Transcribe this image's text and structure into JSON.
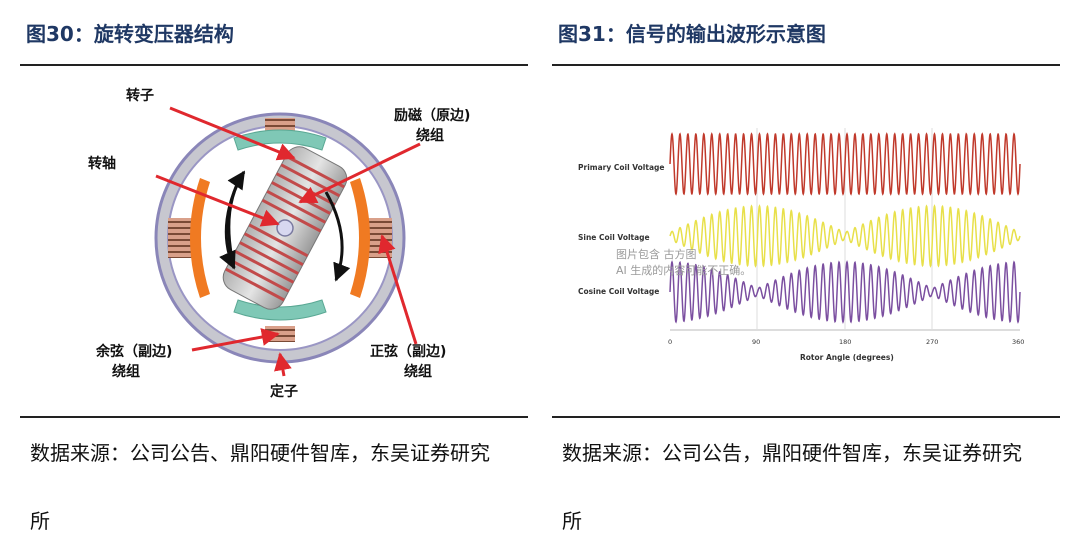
{
  "left": {
    "title": "图30：旋转变压器结构",
    "labels": {
      "rotor": "转子",
      "shaft": "转轴",
      "excitation_l1": "励磁（原边)",
      "excitation_l2": "绕组",
      "cosine_l1": "余弦（副边)",
      "cosine_l2": "绕组",
      "sine_l1": "正弦（副边)",
      "sine_l2": "绕组",
      "stator": "定子"
    },
    "source_l1": "数据来源：公司公告、鼎阳硬件智库，东吴证券研究",
    "source_l2": "所"
  },
  "right": {
    "title": "图31：信号的输出波形示意图",
    "wave_labels": {
      "primary": "Primary Coil Voltage",
      "sine": "Sine Coil Voltage",
      "cosine": "Cosine Coil Voltage"
    },
    "x_ticks": [
      "0",
      "90",
      "180",
      "270",
      "360"
    ],
    "x_label": "Rotor Angle (degrees)",
    "watermark_l1": "图片包含 古方图",
    "watermark_l2": "AI 生成的内容可能不正确。",
    "colors": {
      "primary": "#c0392b",
      "sine": "#e8e04a",
      "cosine": "#7b4fa0"
    },
    "source_l1": "数据来源：公司公告，鼎阳硬件智库，东吴证券研究",
    "source_l2": "所"
  }
}
